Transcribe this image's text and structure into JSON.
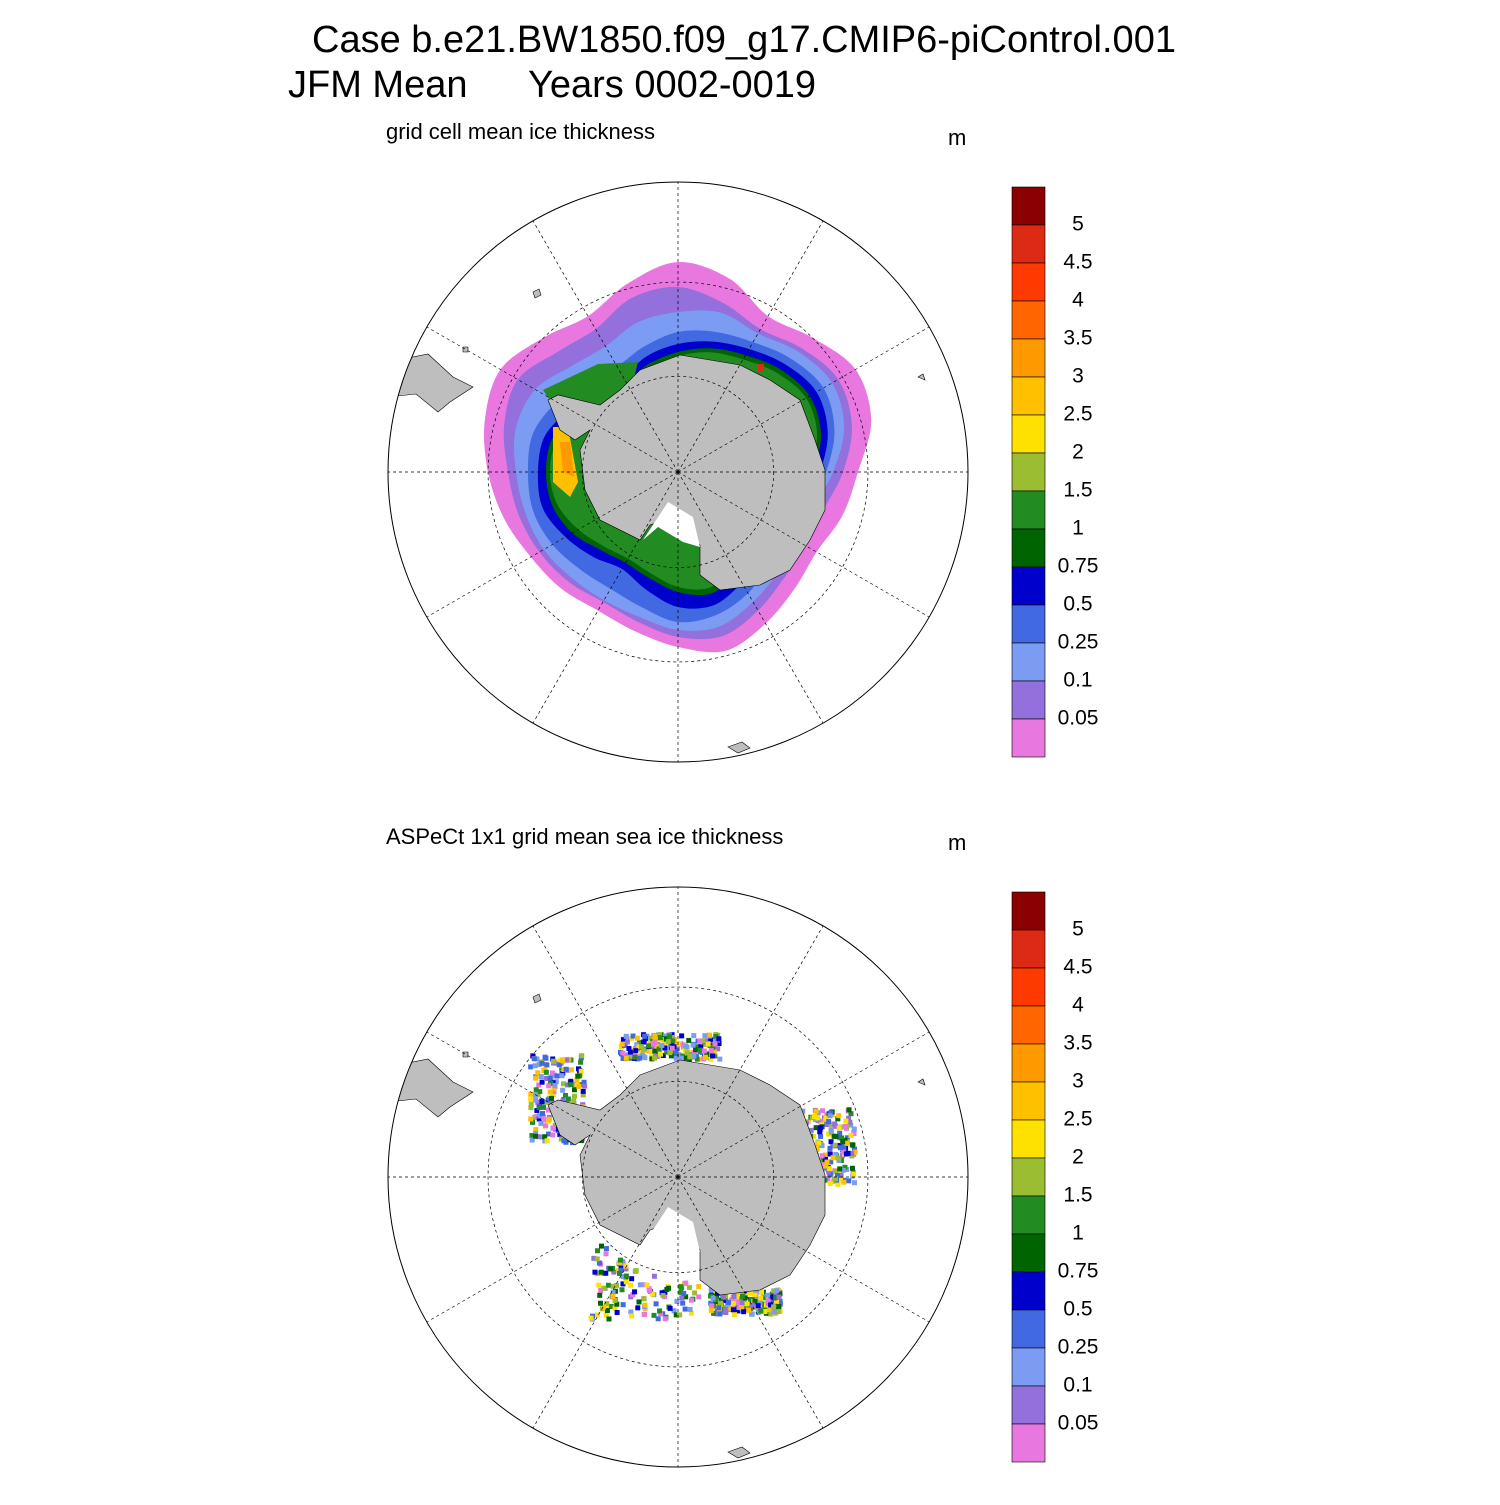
{
  "header": {
    "title": "Case b.e21.BW1850.f09_g17.CMIP6-piControl.001",
    "season": "JFM Mean",
    "years": "Years 0002-0019"
  },
  "panels": [
    {
      "subtitle": "grid cell mean ice thickness",
      "units": "m"
    },
    {
      "subtitle": "ASPeCt 1x1 grid mean sea ice thickness",
      "units": "m"
    }
  ],
  "colorbar": {
    "levels": [
      5,
      4.5,
      4,
      3.5,
      3,
      2.5,
      2,
      1.5,
      1,
      0.75,
      0.5,
      0.25,
      0.1,
      0.05
    ],
    "colors": [
      "#8b0000",
      "#dc2a14",
      "#ff3a00",
      "#ff6600",
      "#ff9900",
      "#ffc000",
      "#ffe100",
      "#9abd32",
      "#228b22",
      "#006400",
      "#0000cd",
      "#4169e1",
      "#7b9cf2",
      "#9370db",
      "#e878e0"
    ]
  }
}
